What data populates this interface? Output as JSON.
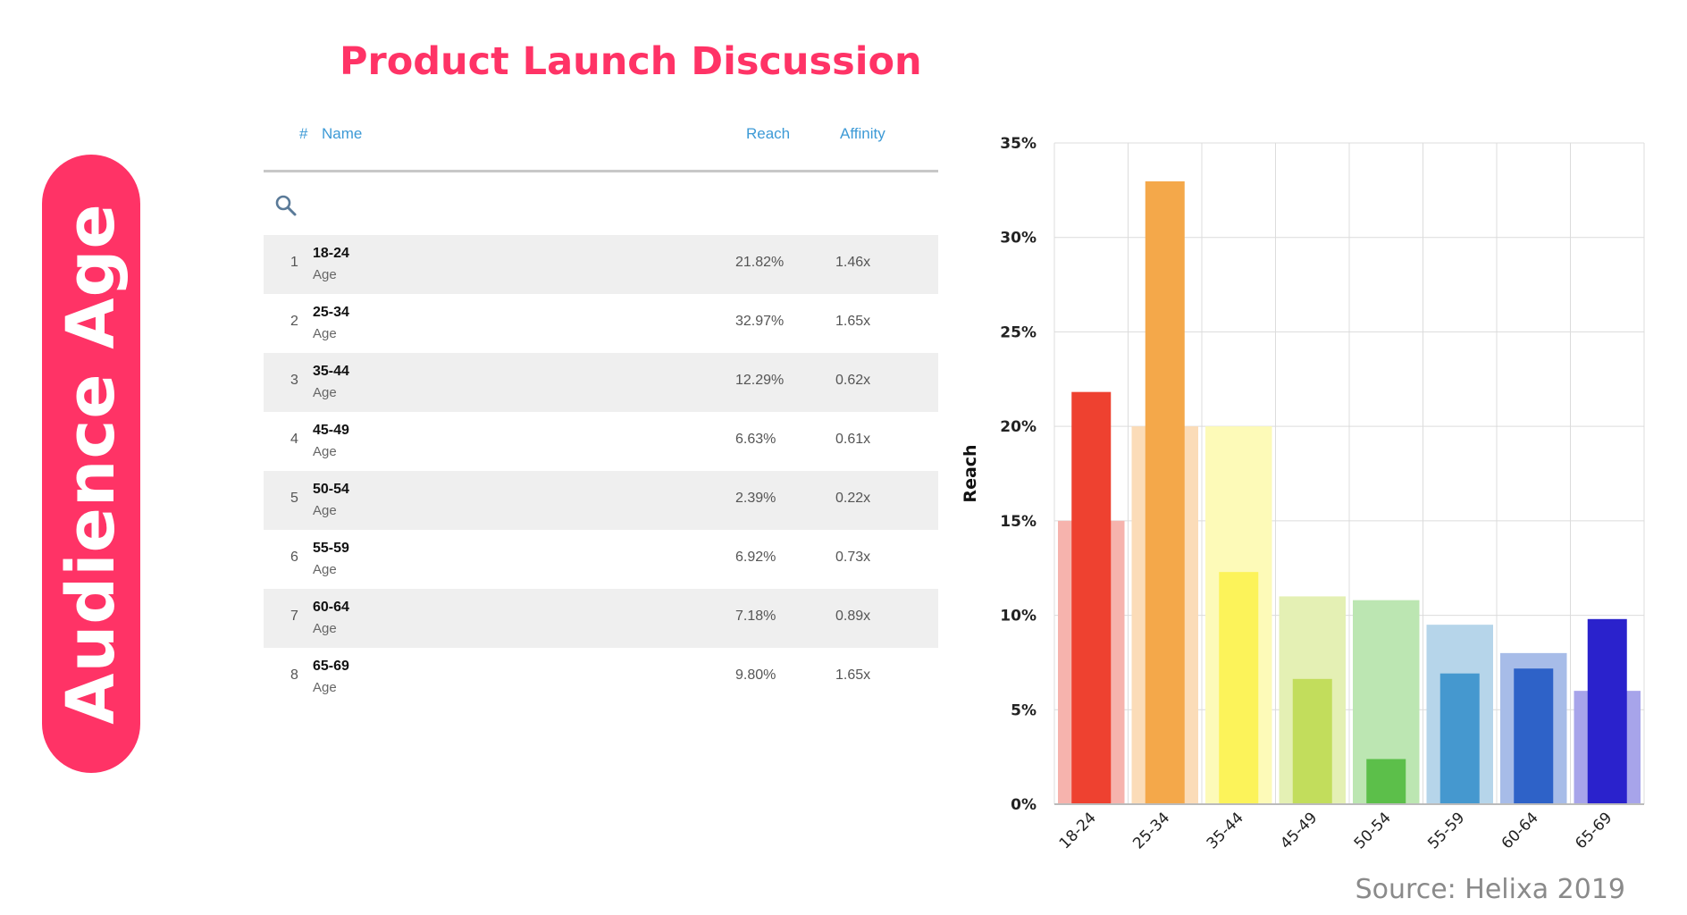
{
  "side_label": "Audience Age",
  "page_title": "Product Launch Discussion",
  "source": "Source: Helixa 2019",
  "table": {
    "headers": {
      "num": "#",
      "name": "Name",
      "reach": "Reach",
      "affinity": "Affinity"
    },
    "rows": [
      {
        "idx": "1",
        "name": "18-24",
        "sub": "Age",
        "reach": "21.82%",
        "affinity": "1.46x"
      },
      {
        "idx": "2",
        "name": "25-34",
        "sub": "Age",
        "reach": "32.97%",
        "affinity": "1.65x"
      },
      {
        "idx": "3",
        "name": "35-44",
        "sub": "Age",
        "reach": "12.29%",
        "affinity": "0.62x"
      },
      {
        "idx": "4",
        "name": "45-49",
        "sub": "Age",
        "reach": "6.63%",
        "affinity": "0.61x"
      },
      {
        "idx": "5",
        "name": "50-54",
        "sub": "Age",
        "reach": "2.39%",
        "affinity": "0.22x"
      },
      {
        "idx": "6",
        "name": "55-59",
        "sub": "Age",
        "reach": "6.92%",
        "affinity": "0.73x"
      },
      {
        "idx": "7",
        "name": "60-64",
        "sub": "Age",
        "reach": "7.18%",
        "affinity": "0.89x"
      },
      {
        "idx": "8",
        "name": "65-69",
        "sub": "Age",
        "reach": "9.80%",
        "affinity": "1.65x"
      }
    ]
  },
  "chart_data": {
    "type": "bar",
    "ylabel": "Reach",
    "xlabel": "",
    "ylim": [
      0,
      35
    ],
    "yticks": [
      "0%",
      "5%",
      "10%",
      "15%",
      "20%",
      "25%",
      "30%",
      "35%"
    ],
    "grid": true,
    "categories": [
      "18-24",
      "25-34",
      "35-44",
      "45-49",
      "50-54",
      "55-59",
      "60-64",
      "65-69"
    ],
    "series": [
      {
        "values": [
          21.82,
          32.97,
          12.29,
          6.63,
          2.39,
          6.92,
          7.18,
          9.8
        ],
        "colors": [
          "#ee4130",
          "#f4a84a",
          "#fcf35a",
          "#c2dd5c",
          "#5cbf4a",
          "#4598cf",
          "#2e62c8",
          "#2a22cc"
        ]
      },
      {
        "values": [
          15,
          20,
          20,
          11,
          10.8,
          9.5,
          8,
          6
        ],
        "colors": [
          "#f6b3ad",
          "#fbdcb8",
          "#fdfab8",
          "#e4f0b4",
          "#bce6b2",
          "#b6d5ea",
          "#a7bce8",
          "#a7a4ea"
        ]
      }
    ]
  }
}
